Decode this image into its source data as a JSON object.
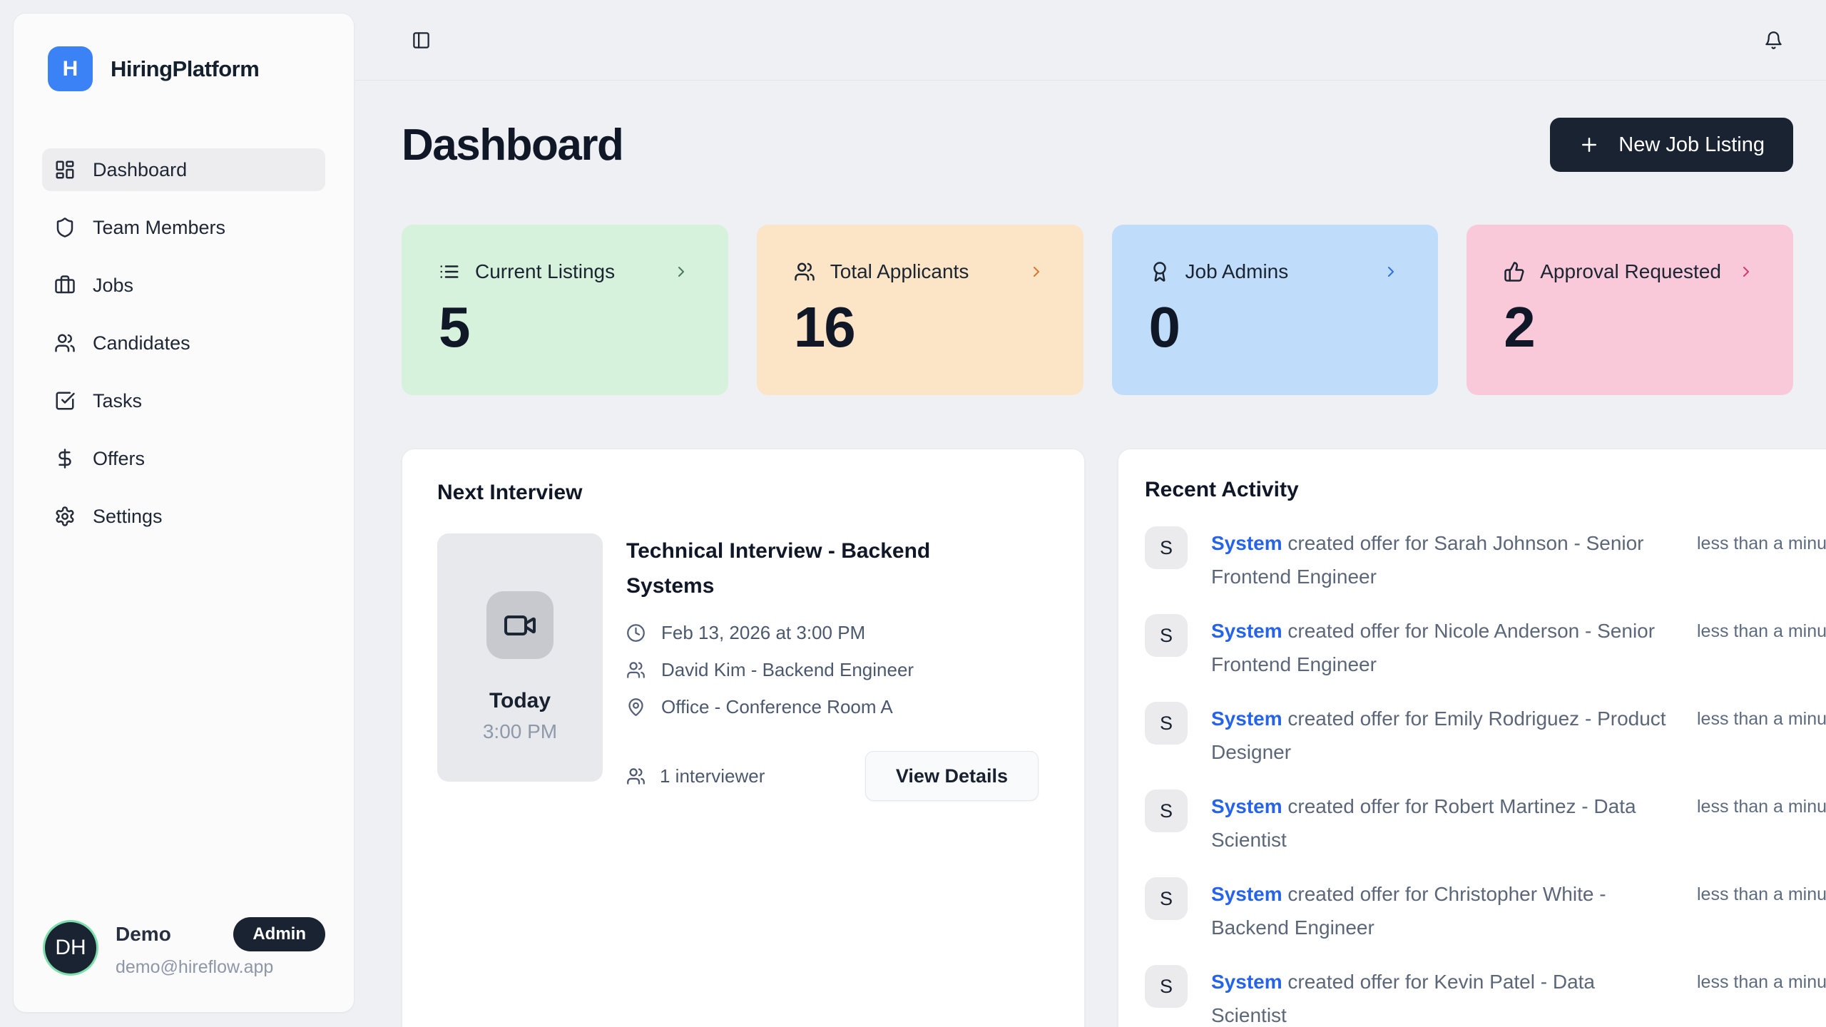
{
  "colors": {
    "brand_blue": "#3b82f6",
    "dark_navy": "#1a2332",
    "link_blue": "#2563eb",
    "page_bg": "#eef0f3"
  },
  "app": {
    "logo_letter": "H",
    "name": "HiringPlatform"
  },
  "topbar": {
    "panel_toggle_icon": "panel-left-icon",
    "bell_icon": "bell-icon"
  },
  "sidebar": {
    "items": [
      {
        "label": "Dashboard",
        "icon": "dashboard-icon",
        "active": true
      },
      {
        "label": "Team Members",
        "icon": "shield-icon",
        "active": false
      },
      {
        "label": "Jobs",
        "icon": "briefcase-icon",
        "active": false
      },
      {
        "label": "Candidates",
        "icon": "users-icon",
        "active": false
      },
      {
        "label": "Tasks",
        "icon": "square-check-icon",
        "active": false
      },
      {
        "label": "Offers",
        "icon": "dollar-icon",
        "active": false
      },
      {
        "label": "Settings",
        "icon": "gear-icon",
        "active": false
      }
    ],
    "user": {
      "initials": "DH",
      "name": "Demo",
      "email": "demo@hireflow.app",
      "badge": "Admin"
    }
  },
  "page": {
    "title": "Dashboard",
    "new_job_button": "New Job Listing"
  },
  "stats": [
    {
      "label": "Current Listings",
      "value": "5",
      "icon": "list-icon",
      "bg_color": "#d7f2dc",
      "accent_color": "#47795b"
    },
    {
      "label": "Total Applicants",
      "value": "16",
      "icon": "users-icon",
      "bg_color": "#fce4c6",
      "accent_color": "#d9772e"
    },
    {
      "label": "Job Admins",
      "value": "0",
      "icon": "award-icon",
      "bg_color": "#bfdcfa",
      "accent_color": "#2e6fe8"
    },
    {
      "label": "Approval Requested",
      "value": "2",
      "icon": "thumbs-up-icon",
      "bg_color": "#f9c9da",
      "accent_color": "#d23b72"
    }
  ],
  "next_interview": {
    "section_title": "Next Interview",
    "day_label": "Today",
    "time_label": "3:00 PM",
    "video_icon": "video-icon",
    "title": "Technical Interview - Backend Systems",
    "datetime": "Feb 13, 2026 at 3:00 PM",
    "interviewer": "David Kim - Backend Engineer",
    "location": "Office - Conference Room A",
    "interviewer_count": "1 interviewer",
    "view_details_label": "View Details"
  },
  "recent_activity": {
    "section_title": "Recent Activity",
    "items": [
      {
        "avatar": "S",
        "actor": "System",
        "text": "created offer for Sarah Johnson - Senior Frontend Engineer",
        "time": "less than a minute ago"
      },
      {
        "avatar": "S",
        "actor": "System",
        "text": "created offer for Nicole Anderson - Senior Frontend Engineer",
        "time": "less than a minute ago"
      },
      {
        "avatar": "S",
        "actor": "System",
        "text": "created offer for Emily Rodriguez - Product Designer",
        "time": "less than a minute ago"
      },
      {
        "avatar": "S",
        "actor": "System",
        "text": "created offer for Robert Martinez - Data Scientist",
        "time": "less than a minute ago"
      },
      {
        "avatar": "S",
        "actor": "System",
        "text": "created offer for Christopher White - Backend Engineer",
        "time": "less than a minute ago"
      },
      {
        "avatar": "S",
        "actor": "System",
        "text": "created offer for Kevin Patel - Data Scientist",
        "time": "less than a minute ago"
      }
    ]
  }
}
